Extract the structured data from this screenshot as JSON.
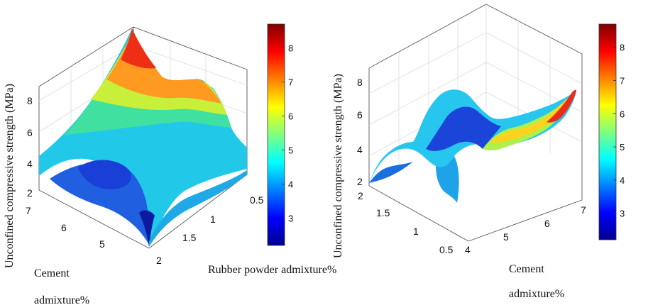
{
  "chart_data": [
    {
      "type": "surface3d",
      "zlabel": "Unconfined compressive strength (MPa)",
      "x_label": "Cement admixture%",
      "y_label": "Rubber powder admixture%",
      "x_ticks": [
        "5",
        "6",
        "7"
      ],
      "y_ticks": [
        "0.5",
        "1",
        "1.5",
        "2"
      ],
      "z_ticks": [
        "2",
        "4",
        "6",
        "8"
      ],
      "x_range": [
        4,
        7
      ],
      "y_range": [
        0.5,
        2
      ],
      "z_range": [
        2,
        9
      ],
      "colorbar_ticks": [
        "3",
        "4",
        "5",
        "6",
        "7",
        "8"
      ],
      "colorbar_range": [
        2.2,
        8.7
      ],
      "colormap": "jet",
      "surface_samples": [
        {
          "cement": 7,
          "rubber": 2,
          "ucs": 3.1
        },
        {
          "cement": 4,
          "rubber": 2,
          "ucs": 2.2
        },
        {
          "cement": 7,
          "rubber": 0.5,
          "ucs": 8.7
        },
        {
          "cement": 4,
          "rubber": 0.5,
          "ucs": 4.7
        },
        {
          "cement": 6,
          "rubber": 1.5,
          "ucs": 3.6
        },
        {
          "cement": 6.3,
          "rubber": 0.7,
          "ucs": 6.0
        }
      ]
    },
    {
      "type": "surface3d",
      "zlabel": "Unconfined compressive strength (MPa)",
      "x_label": "Cement admixture%",
      "y_label": "Rubber powder admixture%",
      "x_ticks": [
        "4",
        "5",
        "6",
        "7"
      ],
      "y_ticks": [
        "0.5",
        "1",
        "1.5",
        "2"
      ],
      "z_ticks": [
        "2",
        "4",
        "6",
        "8"
      ],
      "x_range": [
        4,
        7
      ],
      "y_range": [
        0.5,
        2
      ],
      "z_range": [
        2,
        9
      ],
      "colorbar_ticks": [
        "3",
        "4",
        "5",
        "6",
        "7",
        "8"
      ],
      "colorbar_range": [
        2.2,
        8.7
      ],
      "colormap": "jet",
      "surface_samples": [
        {
          "cement": 4,
          "rubber": 2,
          "ucs": 2.5
        },
        {
          "cement": 4,
          "rubber": 0.5,
          "ucs": 3.5
        },
        {
          "cement": 7,
          "rubber": 0.5,
          "ucs": 8.5
        },
        {
          "cement": 7,
          "rubber": 2,
          "ucs": 5.5
        },
        {
          "cement": 5.5,
          "rubber": 1.2,
          "ucs": 4.0
        }
      ]
    }
  ],
  "labels": {
    "left_cement_line1": "Cement",
    "left_cement_line2": "admixture%",
    "rubber_label": "Rubber powder admixture%",
    "right_cement_line1": "Cement",
    "right_cement_line2": "admixture%"
  }
}
